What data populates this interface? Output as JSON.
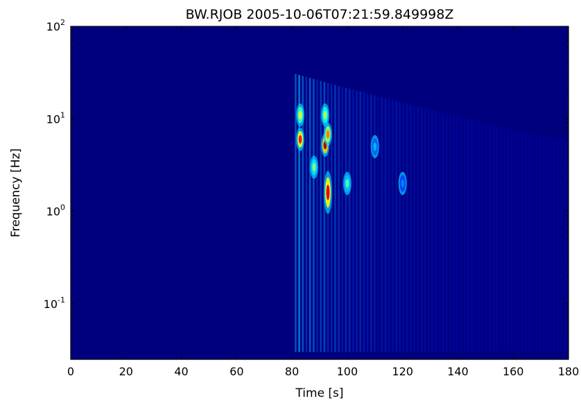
{
  "chart_data": {
    "type": "heatmap",
    "title": "BW.RJOB 2005-10-06T07:21:59.849998Z",
    "xlabel": "Time [s]",
    "ylabel": "Frequency [Hz]",
    "xlim": [
      0,
      180
    ],
    "ylim": [
      0.025,
      100
    ],
    "yscale": "log",
    "grid": false,
    "colormap": "jet",
    "x_ticks": [
      {
        "value": 0,
        "label": "0"
      },
      {
        "value": 20,
        "label": "20"
      },
      {
        "value": 40,
        "label": "40"
      },
      {
        "value": 60,
        "label": "60"
      },
      {
        "value": 80,
        "label": "80"
      },
      {
        "value": 100,
        "label": "100"
      },
      {
        "value": 120,
        "label": "120"
      },
      {
        "value": 140,
        "label": "140"
      },
      {
        "value": 160,
        "label": "160"
      },
      {
        "value": 180,
        "label": "180"
      }
    ],
    "y_ticks": [
      {
        "value": 0.1,
        "base": "10",
        "exp": "-1"
      },
      {
        "value": 1,
        "base": "10",
        "exp": "0"
      },
      {
        "value": 10,
        "base": "10",
        "exp": "1"
      },
      {
        "value": 100,
        "base": "10",
        "exp": "2"
      }
    ],
    "features": [
      {
        "t": 83,
        "f": 6,
        "intensity": 0.85
      },
      {
        "t": 83,
        "f": 11,
        "intensity": 0.6
      },
      {
        "t": 92,
        "f": 5.2,
        "intensity": 0.95
      },
      {
        "t": 93,
        "f": 6.8,
        "intensity": 0.75
      },
      {
        "t": 93,
        "f": 1.6,
        "intensity": 0.9
      },
      {
        "t": 92,
        "f": 11,
        "intensity": 0.55
      },
      {
        "t": 88,
        "f": 3,
        "intensity": 0.5
      },
      {
        "t": 100,
        "f": 2,
        "intensity": 0.45
      },
      {
        "t": 110,
        "f": 5,
        "intensity": 0.3
      },
      {
        "t": 120,
        "f": 2,
        "intensity": 0.25
      }
    ],
    "colors": {
      "background": "#00007f",
      "axis": "#000000"
    }
  }
}
